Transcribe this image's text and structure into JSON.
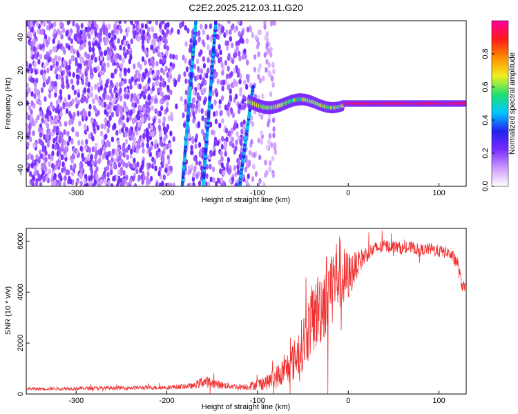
{
  "title": "C2E2.2025.212.03.11.G20",
  "colors": {
    "snr_line": "#f03030",
    "colormap": [
      "#ffffff",
      "#cc99ff",
      "#7a2bff",
      "#2222ee",
      "#00c8ff",
      "#20e070",
      "#f0f020",
      "#ff8c00",
      "#ff1a1a",
      "#ff00a0"
    ]
  },
  "chart_data": [
    {
      "type": "heatmap",
      "xlabel": "Height of straight line (km)",
      "ylabel": "Frequency (Hz)",
      "xlim": [
        -355,
        130
      ],
      "ylim": [
        -50,
        50
      ],
      "x_ticks": [
        -300,
        -200,
        -100,
        0,
        100
      ],
      "y_ticks": [
        -40,
        -20,
        0,
        20,
        40
      ],
      "grid": false,
      "colorbar": {
        "label": "Normalized spectral amplitude",
        "range": [
          0,
          1
        ],
        "ticks": [
          0.0,
          0.2,
          0.4,
          0.6,
          0.8
        ]
      },
      "features": {
        "noise_region_x": [
          -355,
          -80
        ],
        "signal_tone": {
          "x": [
            -110,
            130
          ],
          "frequency_hz": 0,
          "amplitude_from": 0.5,
          "amplitude_to": 0.95
        },
        "diagonal_tracks": [
          {
            "x": [
              -183,
              -168
            ],
            "frequency_hz": [
              -50,
              50
            ]
          },
          {
            "x": [
              -160,
              -146
            ],
            "frequency_hz": [
              -50,
              50
            ]
          },
          {
            "x": [
              -120,
              -105
            ],
            "frequency_hz": [
              -50,
              10
            ]
          }
        ]
      }
    },
    {
      "type": "line",
      "xlabel": "Height of straight line (km)",
      "ylabel": "SNR (10 * v/v)",
      "xlim": [
        -355,
        130
      ],
      "ylim": [
        0,
        6500
      ],
      "x_ticks": [
        -300,
        -200,
        -100,
        0,
        100
      ],
      "y_ticks": [
        0,
        2000,
        4000,
        6000
      ],
      "grid": false,
      "series": [
        {
          "x": [
            -355,
            -300,
            -250,
            -200,
            -170,
            -160,
            -140,
            -120,
            -110,
            -100,
            -90,
            -80,
            -70,
            -60,
            -50,
            -40,
            -30,
            -20,
            -10,
            -5,
            0,
            10,
            20,
            30,
            40,
            50,
            60,
            70,
            80,
            90,
            100,
            110,
            120,
            125,
            130
          ],
          "values": [
            200,
            220,
            240,
            260,
            320,
            500,
            350,
            280,
            300,
            380,
            450,
            650,
            900,
            1300,
            2000,
            2900,
            3500,
            4200,
            4800,
            4500,
            4600,
            5100,
            5500,
            5700,
            5800,
            5800,
            5700,
            5750,
            5650,
            5700,
            5600,
            5550,
            5200,
            4300,
            4100
          ],
          "noise": [
            60,
            70,
            80,
            90,
            110,
            250,
            150,
            100,
            150,
            220,
            300,
            450,
            600,
            800,
            1100,
            1400,
            1600,
            1700,
            1500,
            1300,
            1000,
            500,
            350,
            280,
            250,
            250,
            240,
            240,
            230,
            240,
            250,
            220,
            300,
            250,
            250
          ]
        }
      ]
    }
  ]
}
